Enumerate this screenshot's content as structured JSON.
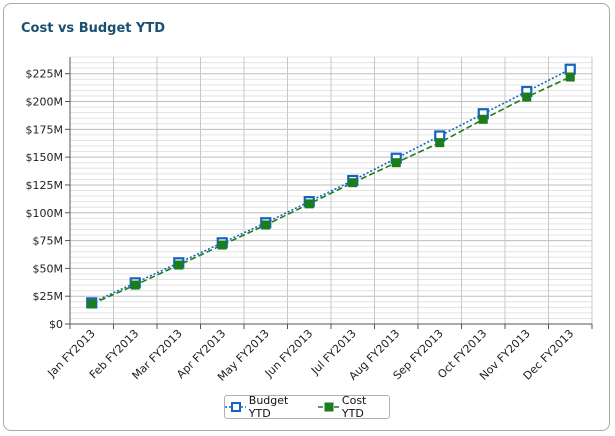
{
  "panel": {
    "title": "Cost vs Budget YTD"
  },
  "colors": {
    "budget": "#1565c0",
    "cost": "#1b7d1b",
    "grid": "#c8c8c8",
    "axis": "#555555",
    "title": "#1b4f72"
  },
  "chart_data": {
    "type": "line",
    "title": "Cost vs Budget YTD",
    "xlabel": "",
    "ylabel": "",
    "categories": [
      "Jan FY2013",
      "Feb FY2013",
      "Mar FY2013",
      "Apr FY2013",
      "May FY2013",
      "Jun FY2013",
      "Jul FY2013",
      "Aug FY2013",
      "Sep FY2013",
      "Oct FY2013",
      "Nov FY2013",
      "Dec FY2013"
    ],
    "ylim": [
      0,
      240
    ],
    "y_ticks": [
      0,
      25,
      50,
      75,
      100,
      125,
      150,
      175,
      200,
      225
    ],
    "y_tick_labels": [
      "$0",
      "$25M",
      "$50M",
      "$75M",
      "$100M",
      "$125M",
      "$150M",
      "$175M",
      "$200M",
      "$225M"
    ],
    "grid": true,
    "legend_position": "bottom-center",
    "series": [
      {
        "name": "Budget YTD",
        "style": "dotted",
        "marker": "hollow-square",
        "color": "#1565c0",
        "values": [
          19,
          37,
          55,
          73,
          91,
          110,
          129,
          149,
          169,
          189,
          209,
          229
        ]
      },
      {
        "name": "Cost YTD",
        "style": "dashed",
        "marker": "filled-square",
        "color": "#1b7d1b",
        "values": [
          18,
          35,
          53,
          71,
          89,
          108,
          127,
          145,
          163,
          184,
          204,
          222
        ]
      }
    ]
  }
}
